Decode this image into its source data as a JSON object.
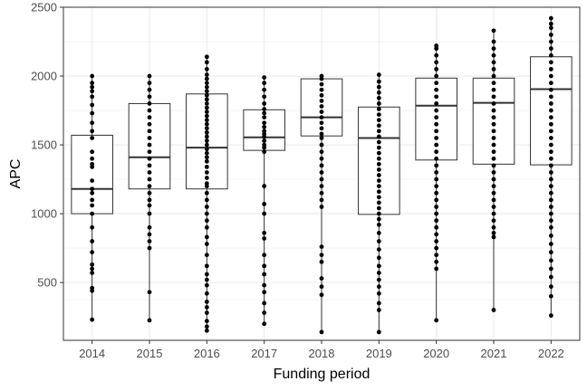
{
  "chart_data": {
    "type": "box",
    "title": "",
    "xlabel": "Funding period",
    "ylabel": "APC",
    "categories": [
      "2014",
      "2015",
      "2016",
      "2017",
      "2018",
      "2019",
      "2020",
      "2021",
      "2022"
    ],
    "ylim": [
      80,
      2500
    ],
    "yticks": [
      500,
      1000,
      1500,
      2000,
      2500
    ],
    "grid": true,
    "legend": "none",
    "boxes": [
      {
        "category": "2014",
        "min": 230,
        "q1": 1000,
        "median": 1180,
        "q3": 1570,
        "max": 2000
      },
      {
        "category": "2015",
        "min": 225,
        "q1": 1180,
        "median": 1410,
        "q3": 1800,
        "max": 2000
      },
      {
        "category": "2016",
        "min": 150,
        "q1": 1180,
        "median": 1480,
        "q3": 1870,
        "max": 2140
      },
      {
        "category": "2017",
        "min": 200,
        "q1": 1460,
        "median": 1555,
        "q3": 1755,
        "max": 1990
      },
      {
        "category": "2018",
        "min": 140,
        "q1": 1565,
        "median": 1700,
        "q3": 1980,
        "max": 2000
      },
      {
        "category": "2019",
        "min": 140,
        "q1": 995,
        "median": 1550,
        "q3": 1775,
        "max": 2010
      },
      {
        "category": "2020",
        "min": 225,
        "q1": 1390,
        "median": 1785,
        "q3": 1985,
        "max": 2220
      },
      {
        "category": "2021",
        "min": 300,
        "q1": 1360,
        "median": 1805,
        "q3": 1985,
        "max": 2330
      },
      {
        "category": "2022",
        "min": 260,
        "q1": 1355,
        "median": 1905,
        "q3": 2140,
        "max": 2420
      }
    ],
    "points": [
      {
        "category": "2014",
        "values": [
          230,
          440,
          460,
          570,
          600,
          630,
          720,
          800,
          900,
          1000,
          1060,
          1100,
          1150,
          1180,
          1240,
          1340,
          1360,
          1400,
          1450,
          1550,
          1600,
          1660,
          1730,
          1790,
          1850,
          1890,
          1920,
          1950,
          2000
        ]
      },
      {
        "category": "2015",
        "values": [
          225,
          430,
          750,
          800,
          850,
          900,
          1000,
          1060,
          1100,
          1150,
          1200,
          1250,
          1300,
          1350,
          1400,
          1450,
          1500,
          1550,
          1600,
          1650,
          1700,
          1750,
          1800,
          1850,
          1900,
          1950,
          2000
        ]
      },
      {
        "category": "2016",
        "values": [
          150,
          180,
          220,
          280,
          320,
          360,
          420,
          480,
          520,
          560,
          620,
          700,
          780,
          830,
          900,
          950,
          1000,
          1050,
          1100,
          1150,
          1200,
          1220,
          1260,
          1300,
          1340,
          1380,
          1410,
          1440,
          1470,
          1500,
          1530,
          1560,
          1590,
          1620,
          1650,
          1680,
          1710,
          1740,
          1770,
          1800,
          1830,
          1860,
          1890,
          1920,
          1950,
          1980,
          2010,
          2050,
          2100,
          2140
        ]
      },
      {
        "category": "2017",
        "values": [
          200,
          280,
          350,
          430,
          480,
          560,
          620,
          700,
          820,
          860,
          1000,
          1070,
          1200,
          1450,
          1480,
          1500,
          1530,
          1560,
          1580,
          1600,
          1630,
          1660,
          1700,
          1730,
          1760,
          1800,
          1850,
          1900,
          1950,
          1990
        ]
      },
      {
        "category": "2018",
        "values": [
          140,
          410,
          470,
          530,
          650,
          700,
          760,
          1050,
          1100,
          1150,
          1200,
          1250,
          1300,
          1350,
          1400,
          1450,
          1500,
          1550,
          1580,
          1620,
          1660,
          1700,
          1740,
          1780,
          1820,
          1860,
          1900,
          1940,
          1980,
          2000
        ]
      },
      {
        "category": "2019",
        "values": [
          140,
          300,
          350,
          420,
          470,
          520,
          570,
          620,
          680,
          740,
          800,
          860,
          920,
          960,
          1000,
          1040,
          1080,
          1120,
          1160,
          1200,
          1240,
          1280,
          1320,
          1360,
          1400,
          1440,
          1480,
          1520,
          1560,
          1600,
          1640,
          1680,
          1720,
          1760,
          1800,
          1840,
          1880,
          1920,
          1960,
          2010
        ]
      },
      {
        "category": "2020",
        "values": [
          225,
          600,
          650,
          700,
          750,
          800,
          850,
          900,
          950,
          1000,
          1050,
          1100,
          1150,
          1200,
          1250,
          1300,
          1350,
          1400,
          1450,
          1500,
          1550,
          1600,
          1650,
          1700,
          1750,
          1800,
          1850,
          1900,
          1950,
          2000,
          2050,
          2100,
          2150,
          2200,
          2220
        ]
      },
      {
        "category": "2021",
        "values": [
          300,
          830,
          860,
          900,
          950,
          1000,
          1050,
          1100,
          1150,
          1200,
          1250,
          1300,
          1350,
          1400,
          1450,
          1500,
          1550,
          1600,
          1650,
          1700,
          1750,
          1800,
          1850,
          1900,
          1950,
          2000,
          2050,
          2100,
          2150,
          2200,
          2250,
          2330
        ]
      },
      {
        "category": "2022",
        "values": [
          260,
          400,
          470,
          540,
          600,
          660,
          720,
          780,
          840,
          900,
          950,
          1000,
          1050,
          1100,
          1150,
          1200,
          1250,
          1300,
          1350,
          1400,
          1450,
          1500,
          1550,
          1600,
          1650,
          1700,
          1750,
          1800,
          1850,
          1900,
          1950,
          2000,
          2050,
          2100,
          2150,
          2200,
          2250,
          2300,
          2350,
          2380,
          2420
        ]
      }
    ]
  }
}
